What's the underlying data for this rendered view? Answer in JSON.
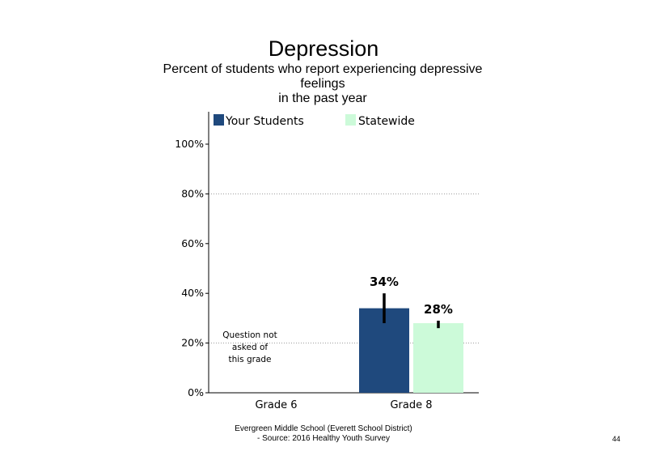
{
  "chart_data": {
    "type": "bar",
    "title": "Depression",
    "subtitle_lines": [
      "Percent of students who report experiencing depressive",
      "feelings",
      "in the past year"
    ],
    "categories": [
      "Grade 6",
      "Grade 8"
    ],
    "series": [
      {
        "name": "Your Students",
        "color": "#1f497d",
        "values": [
          null,
          34
        ],
        "error": [
          null,
          [
            28,
            40
          ]
        ],
        "labels": [
          "",
          "34%"
        ]
      },
      {
        "name": "Statewide",
        "color": "#ccfad9",
        "values": [
          null,
          28
        ],
        "error": [
          null,
          [
            26,
            29
          ]
        ],
        "labels": [
          "",
          "28%"
        ]
      }
    ],
    "yticks": [
      "0%",
      "20%",
      "40%",
      "60%",
      "80%",
      "100%"
    ],
    "ylim": [
      0,
      100
    ],
    "grid": "dotted at 20%, 80%",
    "legend": "top",
    "note_lines": [
      "Question not",
      "asked of",
      "this grade"
    ]
  },
  "footer": {
    "line1": "Evergreen Middle School (Everett School District)",
    "line2": "- Source: 2016 Healthy  Youth Survey"
  },
  "page_number": "44"
}
